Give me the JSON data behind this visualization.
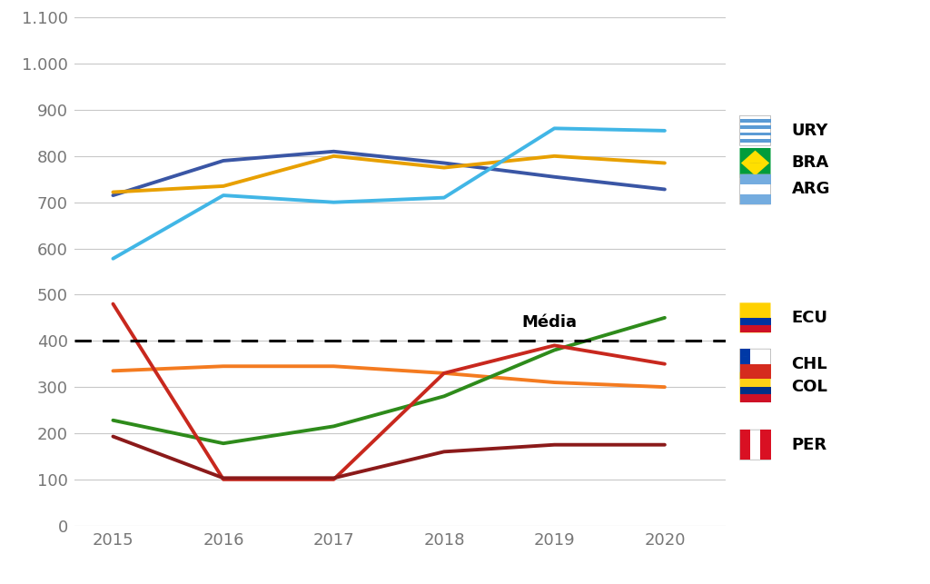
{
  "years": [
    2015,
    2016,
    2017,
    2018,
    2019,
    2020
  ],
  "series": {
    "URY": {
      "values": [
        578,
        715,
        700,
        710,
        860,
        855
      ],
      "color": "#41B6E6",
      "label": "URY"
    },
    "BRA": {
      "values": [
        722,
        735,
        800,
        775,
        800,
        785
      ],
      "color": "#E8A000",
      "label": "BRA"
    },
    "ARG": {
      "values": [
        715,
        790,
        810,
        785,
        755,
        728
      ],
      "color": "#3A56A5",
      "label": "ARG"
    },
    "CHL": {
      "values": [
        480,
        100,
        100,
        330,
        390,
        350
      ],
      "color": "#C8281E",
      "label": "CHL"
    },
    "COL": {
      "values": [
        335,
        345,
        345,
        330,
        310,
        300
      ],
      "color": "#F47B20",
      "label": "COL"
    },
    "ECU": {
      "values": [
        228,
        178,
        215,
        280,
        380,
        450
      ],
      "color": "#2E8B1B",
      "label": "ECU"
    },
    "PER": {
      "values": [
        193,
        103,
        103,
        160,
        175,
        175
      ],
      "color": "#8B1A1A",
      "label": "PER"
    }
  },
  "media_value": 400,
  "media_label": "Média",
  "ylim": [
    0,
    1100
  ],
  "yticks": [
    0,
    100,
    200,
    300,
    400,
    500,
    600,
    700,
    800,
    900,
    1000,
    1100
  ],
  "ytick_labels": [
    "0",
    "100",
    "200",
    "300",
    "400",
    "500",
    "600",
    "700",
    "800",
    "900",
    "1.000",
    "1.100"
  ],
  "background_color": "#FFFFFF",
  "grid_color": "#C8C8C8",
  "legend_order": [
    "URY",
    "BRA",
    "ARG",
    "ECU",
    "CHL",
    "COL",
    "PER"
  ],
  "legend_y_data": {
    "URY": 855,
    "BRA": 785,
    "ARG": 728,
    "ECU": 450,
    "CHL": 350,
    "COL": 300,
    "PER": 175
  }
}
